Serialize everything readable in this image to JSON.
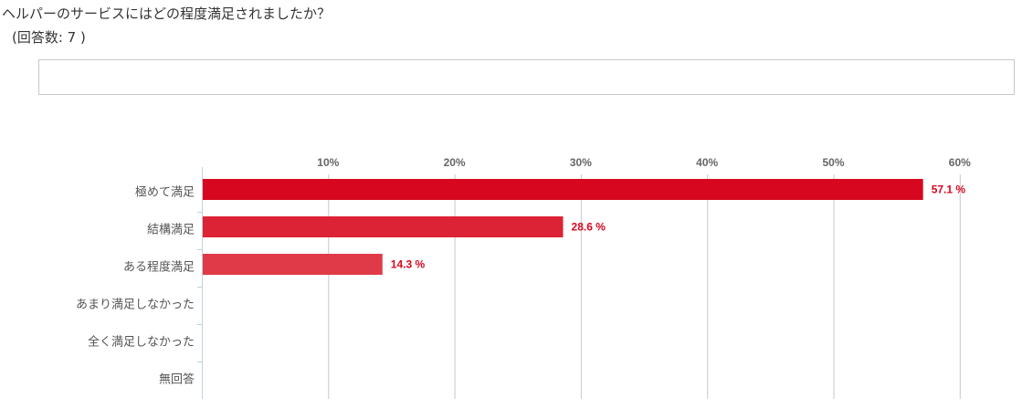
{
  "question": {
    "title": "ヘルパーのサービスにはどの程度満足されましたか？",
    "response_count": "(回答数: 7 )"
  },
  "chart_data": {
    "type": "bar",
    "orientation": "horizontal",
    "categories": [
      "極めて満足",
      "結構満足",
      "ある程度満足",
      "あまり満足しなかった",
      "全く満足しなかった",
      "無回答"
    ],
    "values": [
      57.1,
      28.6,
      14.3,
      0,
      0,
      0
    ],
    "value_labels": [
      "57.1 %",
      "28.6 %",
      "14.3 %",
      "",
      "",
      ""
    ],
    "bar_colors": [
      "#d7071f",
      "#dc2336",
      "#e03a48",
      "#e03a48",
      "#e03a48",
      "#e03a48"
    ],
    "xticks": [
      10,
      20,
      30,
      40,
      50,
      60
    ],
    "xtick_labels": [
      "10%",
      "20%",
      "30%",
      "40%",
      "50%",
      "60%"
    ],
    "xlim": [
      0,
      64.5
    ],
    "grid": true,
    "title": "",
    "xlabel": "",
    "ylabel": ""
  }
}
